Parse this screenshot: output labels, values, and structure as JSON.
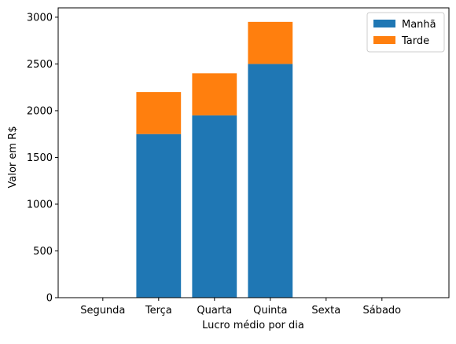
{
  "chart_data": {
    "type": "bar",
    "stacked": true,
    "title": "",
    "xlabel": "Lucro médio por dia",
    "ylabel": "Valor em R$",
    "categories": [
      "Segunda",
      "Terça",
      "Quarta",
      "Quinta",
      "Sexta",
      "Sábado"
    ],
    "series": [
      {
        "name": "Manhã",
        "color": "#1f77b4",
        "values": [
          0,
          1750,
          1950,
          2500,
          0,
          0
        ]
      },
      {
        "name": "Tarde",
        "color": "#ff7f0e",
        "values": [
          0,
          450,
          450,
          450,
          0,
          0
        ]
      }
    ],
    "ylim": [
      0,
      3100
    ],
    "yticks": [
      0,
      500,
      1000,
      1500,
      2000,
      2500,
      3000
    ],
    "grid": false,
    "legend_position": "top-right"
  }
}
